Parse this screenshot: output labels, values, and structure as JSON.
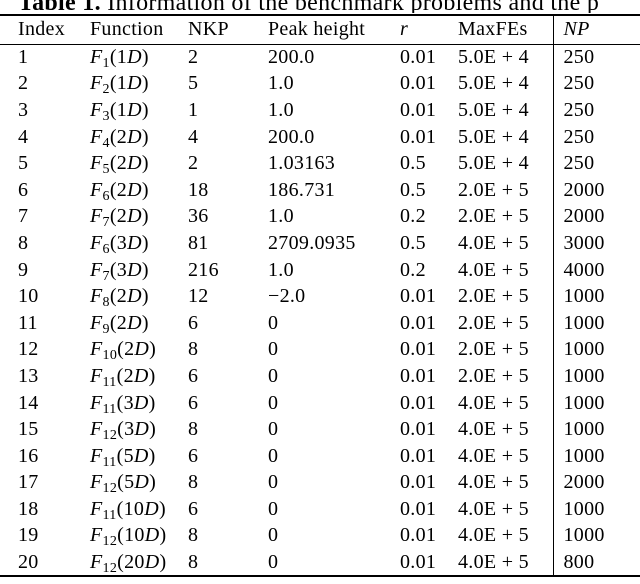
{
  "caption": {
    "label": "Table 1.",
    "text": "Information of the benchmark problems and the p"
  },
  "table": {
    "headers": [
      "Index",
      "Function",
      "NKP",
      "Peak height",
      "r",
      "MaxFEs",
      "NP"
    ],
    "rows": [
      {
        "index": "1",
        "function": "F1(1D)",
        "nkp": "2",
        "peak": "200.0",
        "r": "0.01",
        "maxfes": "5.0E + 4",
        "np": "250"
      },
      {
        "index": "2",
        "function": "F2(1D)",
        "nkp": "5",
        "peak": "1.0",
        "r": "0.01",
        "maxfes": "5.0E + 4",
        "np": "250"
      },
      {
        "index": "3",
        "function": "F3(1D)",
        "nkp": "1",
        "peak": "1.0",
        "r": "0.01",
        "maxfes": "5.0E + 4",
        "np": "250"
      },
      {
        "index": "4",
        "function": "F4(2D)",
        "nkp": "4",
        "peak": "200.0",
        "r": "0.01",
        "maxfes": "5.0E + 4",
        "np": "250"
      },
      {
        "index": "5",
        "function": "F5(2D)",
        "nkp": "2",
        "peak": "1.03163",
        "r": "0.5",
        "maxfes": "5.0E + 4",
        "np": "250"
      },
      {
        "index": "6",
        "function": "F6(2D)",
        "nkp": "18",
        "peak": "186.731",
        "r": "0.5",
        "maxfes": "2.0E + 5",
        "np": "2000"
      },
      {
        "index": "7",
        "function": "F7(2D)",
        "nkp": "36",
        "peak": "1.0",
        "r": "0.2",
        "maxfes": "2.0E + 5",
        "np": "2000"
      },
      {
        "index": "8",
        "function": "F6(3D)",
        "nkp": "81",
        "peak": "2709.0935",
        "r": "0.5",
        "maxfes": "4.0E + 5",
        "np": "3000"
      },
      {
        "index": "9",
        "function": "F7(3D)",
        "nkp": "216",
        "peak": "1.0",
        "r": "0.2",
        "maxfes": "4.0E + 5",
        "np": "4000"
      },
      {
        "index": "10",
        "function": "F8(2D)",
        "nkp": "12",
        "peak": "−2.0",
        "r": "0.01",
        "maxfes": "2.0E + 5",
        "np": "1000"
      },
      {
        "index": "11",
        "function": "F9(2D)",
        "nkp": "6",
        "peak": "0",
        "r": "0.01",
        "maxfes": "2.0E + 5",
        "np": "1000"
      },
      {
        "index": "12",
        "function": "F10(2D)",
        "nkp": "8",
        "peak": "0",
        "r": "0.01",
        "maxfes": "2.0E + 5",
        "np": "1000"
      },
      {
        "index": "13",
        "function": "F11(2D)",
        "nkp": "6",
        "peak": "0",
        "r": "0.01",
        "maxfes": "2.0E + 5",
        "np": "1000"
      },
      {
        "index": "14",
        "function": "F11(3D)",
        "nkp": "6",
        "peak": "0",
        "r": "0.01",
        "maxfes": "4.0E + 5",
        "np": "1000"
      },
      {
        "index": "15",
        "function": "F12(3D)",
        "nkp": "8",
        "peak": "0",
        "r": "0.01",
        "maxfes": "4.0E + 5",
        "np": "1000"
      },
      {
        "index": "16",
        "function": "F11(5D)",
        "nkp": "6",
        "peak": "0",
        "r": "0.01",
        "maxfes": "4.0E + 5",
        "np": "1000"
      },
      {
        "index": "17",
        "function": "F12(5D)",
        "nkp": "8",
        "peak": "0",
        "r": "0.01",
        "maxfes": "4.0E + 5",
        "np": "2000"
      },
      {
        "index": "18",
        "function": "F11(10D)",
        "nkp": "6",
        "peak": "0",
        "r": "0.01",
        "maxfes": "4.0E + 5",
        "np": "1000"
      },
      {
        "index": "19",
        "function": "F12(10D)",
        "nkp": "8",
        "peak": "0",
        "r": "0.01",
        "maxfes": "4.0E + 5",
        "np": "1000"
      },
      {
        "index": "20",
        "function": "F12(20D)",
        "nkp": "8",
        "peak": "0",
        "r": "0.01",
        "maxfes": "4.0E + 5",
        "np": "800"
      }
    ]
  }
}
